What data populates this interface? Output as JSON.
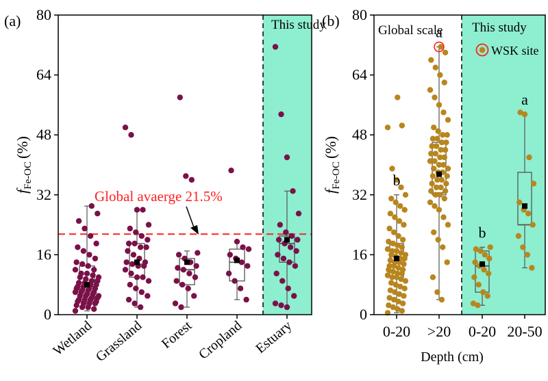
{
  "colors": {
    "panel_a_points": "#7a1148",
    "panel_b_points": "#b8861e",
    "this_study_bg": "#8eeed0",
    "global_line": "#ff2020",
    "box": "#555555",
    "mean_marker": "#000000",
    "wsk_ring": "#ff2020"
  },
  "chart_data": [
    {
      "type": "scatter",
      "panel_label": "(a)",
      "ylabel": "f Fe-OC (%)",
      "ylabel_main": "f",
      "ylabel_sub": "Fe-OC",
      "ylabel_unit": "(%)",
      "ylim": [
        0,
        80
      ],
      "yticks": [
        "0",
        "16",
        "32",
        "48",
        "64",
        "80"
      ],
      "categories": [
        "Wetland",
        "Grassland",
        "Forest",
        "Cropland",
        "Estuary"
      ],
      "shaded_label": "This study",
      "shaded_categories": [
        "Estuary"
      ],
      "reference_line": {
        "label": "Global avaerge 21.5%",
        "value": 21.5
      },
      "groups": [
        {
          "name": "Wetland",
          "box": {
            "q1": 3.5,
            "median": 7.5,
            "q3": 13,
            "whisker_low": 1,
            "whisker_high": 29,
            "mean": 8
          },
          "points": [
            1,
            1.5,
            2,
            2,
            2.5,
            3,
            3,
            3,
            3.5,
            3.5,
            4,
            4,
            4,
            4.5,
            4.5,
            5,
            5,
            5,
            5.5,
            5.5,
            6,
            6,
            6,
            6.5,
            6.5,
            7,
            7,
            7,
            7.5,
            7.5,
            8,
            8,
            8.5,
            8.5,
            9,
            9,
            9.5,
            10,
            10,
            10.5,
            11,
            11,
            12,
            12,
            13,
            13.5,
            14,
            15,
            16,
            17,
            18,
            19,
            21,
            23,
            25,
            27,
            29
          ]
        },
        {
          "name": "Grassland",
          "box": {
            "q1": 10,
            "median": 13.5,
            "q3": 19,
            "whisker_low": 2,
            "whisker_high": 28,
            "mean": 14
          },
          "points": [
            2,
            3,
            4,
            5,
            6,
            7,
            8,
            9,
            10,
            10,
            11,
            12,
            13,
            13,
            13.5,
            14,
            14,
            15,
            16,
            17,
            18,
            18,
            19,
            19,
            20,
            21,
            22,
            23,
            24,
            28,
            28,
            48,
            50
          ]
        },
        {
          "name": "Forest",
          "box": {
            "q1": 8,
            "median": 12,
            "q3": 15,
            "whisker_low": 2,
            "whisker_high": 17,
            "mean": 14
          },
          "points": [
            2,
            3,
            5,
            7,
            8,
            9,
            10,
            11,
            12,
            12.5,
            13,
            14,
            15,
            16,
            16.5,
            36,
            37,
            58
          ]
        },
        {
          "name": "Cropland",
          "box": {
            "q1": 9,
            "median": 14,
            "q3": 17.5,
            "whisker_low": 4,
            "whisker_high": 19.5,
            "mean": 14.5
          },
          "points": [
            4,
            7,
            9,
            11,
            13,
            14,
            15,
            16,
            17.5,
            18,
            19.5,
            38.5
          ]
        },
        {
          "name": "Estuary",
          "box": {
            "q1": 14,
            "median": 19,
            "q3": 21,
            "whisker_low": 2,
            "whisker_high": 33,
            "mean": 20
          },
          "points": [
            2,
            2.5,
            3,
            5,
            7,
            9,
            11,
            13,
            14,
            15,
            16,
            17,
            18,
            19,
            20,
            20,
            21,
            22,
            24,
            27,
            33,
            42,
            53.5,
            71.5
          ]
        }
      ]
    },
    {
      "type": "scatter",
      "panel_label": "(b)",
      "ylabel": "f Fe-OC (%)",
      "ylabel_main": "f",
      "ylabel_sub": "Fe-OC",
      "ylabel_unit": "(%)",
      "xlabel": "Depth (cm)",
      "ylim": [
        0,
        80
      ],
      "yticks": [
        "0",
        "16",
        "32",
        "48",
        "64",
        "80"
      ],
      "categories": [
        "0-20",
        ">20",
        "0-20",
        "20-50"
      ],
      "region_labels": [
        "Global scale",
        "This study"
      ],
      "shaded_label": "This study",
      "legend": {
        "label": "WSK site"
      },
      "letters": [
        "b",
        "a",
        "b",
        "a"
      ],
      "groups": [
        {
          "name": "0-20",
          "region": "Global scale",
          "box": {
            "q1": 10,
            "median": 14.5,
            "q3": 19,
            "whisker_low": 0.5,
            "whisker_high": 32,
            "mean": 15
          },
          "points": [
            0.5,
            1,
            1.5,
            2,
            2.5,
            3,
            3.5,
            4,
            4.5,
            5,
            5.5,
            6,
            6.5,
            7,
            7.5,
            8,
            8.5,
            9,
            9.5,
            10,
            10,
            10.5,
            11,
            11,
            11.5,
            12,
            12,
            12.5,
            13,
            13,
            13.5,
            14,
            14,
            14.5,
            15,
            15,
            15.5,
            16,
            16,
            16.5,
            17,
            17,
            17.5,
            18,
            18.5,
            19,
            19.5,
            20,
            21,
            22,
            23,
            24,
            25,
            26,
            27,
            28,
            29,
            30,
            31,
            32,
            34,
            36,
            39,
            50,
            50.5,
            58
          ]
        },
        {
          "name": ">20",
          "region": "Global scale",
          "box": {
            "q1": 32,
            "median": 32.5,
            "q3": 46,
            "whisker_low": 4,
            "whisker_high": 71.5,
            "mean": 37.5
          },
          "points": [
            4,
            6,
            10,
            14,
            18,
            20,
            22,
            24,
            26,
            28,
            29,
            30,
            31,
            32,
            32,
            33,
            33,
            34,
            34,
            35,
            35,
            36,
            36,
            37,
            37,
            38,
            38,
            39,
            39,
            40,
            40,
            41,
            41,
            42,
            42,
            43,
            43,
            44,
            44,
            45,
            45,
            46,
            46,
            47,
            47,
            48,
            48,
            49,
            50,
            52,
            54,
            56,
            58,
            60,
            62,
            64,
            66,
            68,
            70,
            71.5
          ]
        },
        {
          "name": "0-20",
          "region": "This study",
          "box": {
            "q1": 6,
            "median": 13,
            "q3": 17,
            "whisker_low": 2.5,
            "whisker_high": 18,
            "mean": 13.5
          },
          "points": [
            2.5,
            3,
            5,
            6,
            8,
            10,
            11,
            12,
            13,
            14,
            15,
            16,
            17,
            17.5,
            18
          ]
        },
        {
          "name": "20-50",
          "region": "This study",
          "box": {
            "q1": 24,
            "median": 24,
            "q3": 38,
            "whisker_low": 12.5,
            "whisker_high": 53.5,
            "mean": 29
          },
          "points": [
            12.5,
            16,
            18,
            21,
            24,
            27,
            28,
            30,
            35,
            42,
            53.5,
            54
          ]
        }
      ],
      "wsk_highlight": {
        "group_index": 1,
        "value": 71.5
      }
    }
  ]
}
